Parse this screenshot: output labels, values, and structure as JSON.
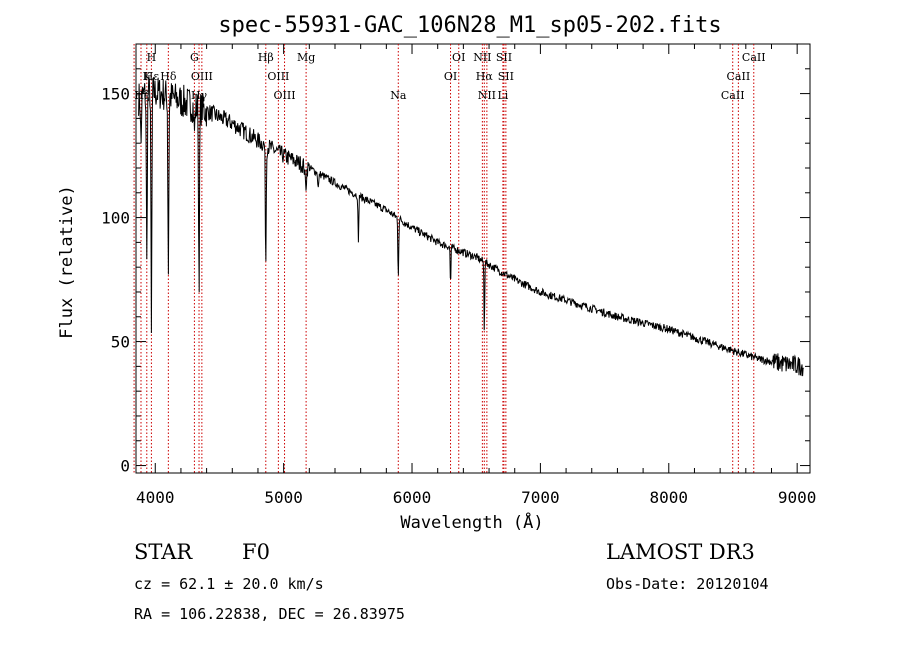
{
  "colors": {
    "spectrum": "#000000",
    "line_marker": "#cc0000",
    "frame": "#000000",
    "background": "#ffffff"
  },
  "chart_data": {
    "type": "line",
    "title": "spec-55931-GAC_106N28_M1_sp05-202.fits",
    "xlabel": "Wavelength (Å)",
    "ylabel": "Flux (relative)",
    "xlim": [
      3850,
      9100
    ],
    "ylim": [
      -3,
      170
    ],
    "xticks": [
      4000,
      5000,
      6000,
      7000,
      8000,
      9000
    ],
    "yticks": [
      0,
      50,
      100,
      150
    ],
    "minor_x_step": 200,
    "minor_y_step": 10,
    "continuum": [
      [
        3870,
        148
      ],
      [
        3950,
        151
      ],
      [
        4050,
        150
      ],
      [
        4200,
        147
      ],
      [
        4400,
        143
      ],
      [
        4600,
        138
      ],
      [
        4800,
        131
      ],
      [
        5000,
        125
      ],
      [
        5200,
        120
      ],
      [
        5500,
        111
      ],
      [
        5800,
        103
      ],
      [
        6000,
        96
      ],
      [
        6200,
        90
      ],
      [
        6500,
        84
      ],
      [
        6800,
        75
      ],
      [
        7000,
        70
      ],
      [
        7300,
        65
      ],
      [
        7600,
        60
      ],
      [
        8000,
        55
      ],
      [
        8400,
        48
      ],
      [
        8700,
        43
      ],
      [
        8900,
        41
      ],
      [
        9050,
        40
      ]
    ],
    "absorption": [
      {
        "w": 3889,
        "depth": 20,
        "width": 5
      },
      {
        "w": 3934,
        "depth": 70,
        "width": 5
      },
      {
        "w": 3970,
        "depth": 100,
        "width": 5
      },
      {
        "w": 4102,
        "depth": 70,
        "width": 5
      },
      {
        "w": 4305,
        "depth": 10,
        "width": 6
      },
      {
        "w": 4341,
        "depth": 70,
        "width": 5
      },
      {
        "w": 4861,
        "depth": 48,
        "width": 5
      },
      {
        "w": 5172,
        "depth": 8,
        "width": 8
      },
      {
        "w": 5270,
        "depth": 6,
        "width": 6
      },
      {
        "w": 5582,
        "depth": 20,
        "width": 4
      },
      {
        "w": 5893,
        "depth": 23,
        "width": 5
      },
      {
        "w": 6300,
        "depth": 16,
        "width": 4
      },
      {
        "w": 6563,
        "depth": 28,
        "width": 4
      }
    ],
    "noise_points": [
      [
        3870,
        148
      ],
      [
        3882,
        156
      ],
      [
        3895,
        143
      ],
      [
        3910,
        158
      ],
      [
        3925,
        138
      ],
      [
        3945,
        160
      ],
      [
        3960,
        142
      ],
      [
        3985,
        161
      ],
      [
        4000,
        150
      ],
      [
        4020,
        162
      ],
      [
        4040,
        149
      ],
      [
        4060,
        157
      ],
      [
        4075,
        146
      ],
      [
        4090,
        155
      ],
      [
        4120,
        147
      ],
      [
        4140,
        154
      ],
      [
        4165,
        143
      ],
      [
        4185,
        152
      ],
      [
        4210,
        146
      ],
      [
        4240,
        151
      ],
      [
        4270,
        144
      ],
      [
        4290,
        150
      ]
    ],
    "series": [
      {
        "name": "flux",
        "values": []
      }
    ],
    "lines": [
      {
        "name": "H",
        "w": 3970,
        "row": 0
      },
      {
        "name": "K",
        "w": 3934,
        "row": 1
      },
      {
        "name": "Hε",
        "w": 3970,
        "row": 1
      },
      {
        "name": "Hδ",
        "w": 4102,
        "row": 1
      },
      {
        "name": "Hε",
        "w": 3889,
        "row": 2
      },
      {
        "name": "Hζ",
        "w": 3835,
        "row": 2
      },
      {
        "name": "G",
        "w": 4305,
        "row": 0
      },
      {
        "name": "OIII",
        "w": 4363,
        "row": 1
      },
      {
        "name": "Hγ",
        "w": 4341,
        "row": 2
      },
      {
        "name": "Hβ",
        "w": 4861,
        "row": 0
      },
      {
        "name": "OIII",
        "w": 4959,
        "row": 1
      },
      {
        "name": "OIII",
        "w": 5007,
        "row": 2
      },
      {
        "name": "Mg",
        "w": 5175,
        "row": 0
      },
      {
        "name": "Na",
        "w": 5893,
        "row": 2
      },
      {
        "name": "OI",
        "w": 6364,
        "row": 0
      },
      {
        "name": "OI",
        "w": 6300,
        "row": 1
      },
      {
        "name": "NII",
        "w": 6548,
        "row": 0
      },
      {
        "name": "SII",
        "w": 6716,
        "row": 0
      },
      {
        "name": "Hα",
        "w": 6563,
        "row": 1
      },
      {
        "name": "SII",
        "w": 6731,
        "row": 1
      },
      {
        "name": "NII",
        "w": 6583,
        "row": 2
      },
      {
        "name": "Li",
        "w": 6708,
        "row": 2
      },
      {
        "name": "CaII",
        "w": 8662,
        "row": 0
      },
      {
        "name": "CaII",
        "w": 8542,
        "row": 1
      },
      {
        "name": "CaII",
        "w": 8498,
        "row": 2
      }
    ]
  },
  "info": {
    "object_class": "STAR",
    "subclass": "F0",
    "survey": "LAMOST DR3",
    "velocity": "cz = 62.1 ± 20.0 km/s",
    "obs_date": "Obs-Date: 20120104",
    "coords": "RA = 106.22838, DEC =  26.83975"
  }
}
